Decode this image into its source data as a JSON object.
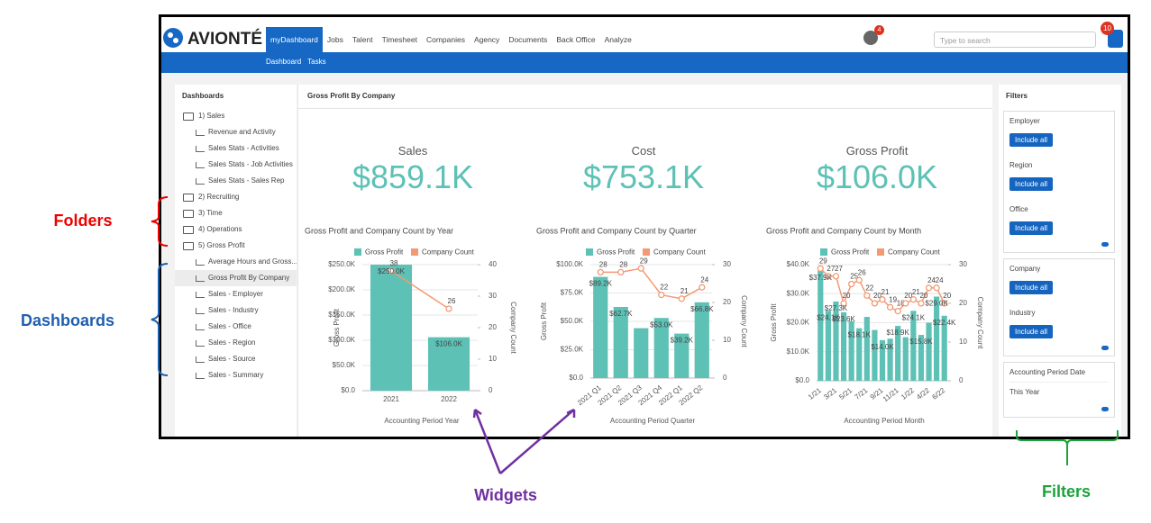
{
  "header": {
    "logo": "AVIONTÉ",
    "nav": [
      "myDashboard",
      "Jobs",
      "Talent",
      "Timesheet",
      "Companies",
      "Agency",
      "Documents",
      "Back Office",
      "Analyze"
    ],
    "subnav": [
      "Dashboard",
      "Tasks"
    ],
    "search_placeholder": "Type to search",
    "notification_count": "4",
    "alert_count": "10"
  },
  "sidebar": {
    "title": "Dashboards",
    "folders": [
      {
        "label": "1) Sales",
        "dashboards": [
          {
            "label": "Revenue and Activity"
          },
          {
            "label": "Sales Stats - Activities"
          },
          {
            "label": "Sales Stats - Job Activities"
          },
          {
            "label": "Sales Stats - Sales Rep"
          }
        ]
      },
      {
        "label": "2) Recruiting",
        "dashboards": []
      },
      {
        "label": "3) Time",
        "dashboards": []
      },
      {
        "label": "4) Operations",
        "dashboards": []
      },
      {
        "label": "5) Gross Profit",
        "dashboards": [
          {
            "label": "Average Hours and Gross..."
          },
          {
            "label": "Gross Profit By Company",
            "selected": true
          },
          {
            "label": "Sales - Employer"
          },
          {
            "label": "Sales - Industry"
          },
          {
            "label": "Sales - Office"
          },
          {
            "label": "Sales - Region"
          },
          {
            "label": "Sales - Source"
          },
          {
            "label": "Sales - Summary"
          }
        ]
      }
    ]
  },
  "widget": {
    "title": "Gross Profit By Company",
    "kpis": [
      {
        "label": "Sales",
        "value": "$859.1K"
      },
      {
        "label": "Cost",
        "value": "$753.1K"
      },
      {
        "label": "Gross Profit",
        "value": "$106.0K"
      }
    ]
  },
  "chart_data": [
    {
      "type": "combo",
      "title": "Gross Profit and Company Count by Year",
      "x_label": "Accounting Period Year",
      "y_label": "Gross Profit",
      "y2_label": "Company Count",
      "categories": [
        "2021",
        "2022"
      ],
      "series": [
        {
          "name": "Gross Profit",
          "color": "#5dc1b6",
          "values": [
            250000,
            106000
          ],
          "value_labels": [
            "$250.0K",
            "$106.0K"
          ]
        },
        {
          "name": "Company Count",
          "color": "#f39a74",
          "axis": "y2",
          "values": [
            38,
            26
          ]
        }
      ],
      "ylim": [
        0,
        250000
      ],
      "yticks": [
        {
          "value": 0,
          "label": "$0.0"
        },
        {
          "value": 50000,
          "label": "$50.0K"
        },
        {
          "value": 100000,
          "label": "$100.0K"
        },
        {
          "value": 150000,
          "label": "$150.0K"
        },
        {
          "value": 200000,
          "label": "$200.0K"
        },
        {
          "value": 250000,
          "label": "$250.0K"
        }
      ],
      "y2lim": [
        0,
        40
      ],
      "y2ticks": [
        0,
        10,
        20,
        30,
        40
      ]
    },
    {
      "type": "combo",
      "title": "Gross Profit and Company Count by Quarter",
      "x_label": "Accounting Period Quarter",
      "y_label": "Gross Profit",
      "y2_label": "Company Count",
      "categories": [
        "2021 Q1",
        "2021 Q2",
        "2021 Q3",
        "2021 Q4",
        "2022 Q1",
        "2022 Q2"
      ],
      "series": [
        {
          "name": "Gross Profit",
          "color": "#5dc1b6",
          "values": [
            89200,
            62700,
            44000,
            53000,
            39200,
            66800
          ],
          "value_labels": [
            "$89.2K",
            "$62.7K",
            null,
            "$53.0K",
            "$39.2K",
            "$66.8K"
          ]
        },
        {
          "name": "Company Count",
          "color": "#f39a74",
          "axis": "y2",
          "values": [
            28,
            28,
            29,
            22,
            21,
            24
          ]
        }
      ],
      "ylim": [
        0,
        100000
      ],
      "yticks": [
        {
          "value": 0,
          "label": "$0.0"
        },
        {
          "value": 25000,
          "label": "$25.0K"
        },
        {
          "value": 50000,
          "label": "$50.0K"
        },
        {
          "value": 75000,
          "label": "$75.0K"
        },
        {
          "value": 100000,
          "label": "$100.0K"
        }
      ],
      "y2lim": [
        0,
        30
      ],
      "y2ticks": [
        0,
        10,
        20,
        30
      ]
    },
    {
      "type": "combo",
      "title": "Gross Profit and Company Count by Month",
      "x_label": "Accounting Period Month",
      "y_label": "Gross Profit",
      "y2_label": "Company Count",
      "categories": [
        "1/21",
        null,
        "3/21",
        null,
        "5/21",
        null,
        "7/21",
        null,
        "9/21",
        null,
        "11/21",
        null,
        "1/22",
        null,
        "4/22",
        null,
        "6/22"
      ],
      "series": [
        {
          "name": "Gross Profit",
          "color": "#5dc1b6",
          "values": [
            37900,
            24100,
            27300,
            23600,
            20500,
            18100,
            22000,
            17500,
            14000,
            14500,
            18900,
            15000,
            24100,
            15800,
            20000,
            29000,
            22400
          ],
          "value_labels": [
            "$37.9K",
            "$24.1K",
            "$27.3K",
            "$23.6K",
            null,
            "$18.1K",
            null,
            null,
            "$14.0K",
            null,
            "$18.9K",
            null,
            "$24.1K",
            "$15.8K",
            null,
            "$29.0K",
            "$22.4K"
          ]
        },
        {
          "name": "Company Count",
          "color": "#f39a74",
          "axis": "y2",
          "values": [
            29,
            27,
            27,
            20,
            25,
            26,
            22,
            20,
            21,
            19,
            18,
            20,
            21,
            20,
            24,
            24,
            20
          ]
        }
      ],
      "ylim": [
        0,
        40000
      ],
      "yticks": [
        {
          "value": 0,
          "label": "$0.0"
        },
        {
          "value": 10000,
          "label": "$10.0K"
        },
        {
          "value": 20000,
          "label": "$20.0K"
        },
        {
          "value": 30000,
          "label": "$30.0K"
        },
        {
          "value": 40000,
          "label": "$40.0K"
        }
      ],
      "y2lim": [
        0,
        30
      ],
      "y2ticks": [
        0,
        10,
        20,
        30
      ]
    }
  ],
  "filters": {
    "title": "Filters",
    "panels": [
      [
        {
          "label": "Employer",
          "button": "Include all"
        },
        {
          "label": "Region",
          "button": "Include all"
        },
        {
          "label": "Office",
          "button": "Include all"
        }
      ],
      [
        {
          "label": "Company",
          "button": "Include all"
        },
        {
          "label": "Industry",
          "button": "Include all"
        }
      ],
      [
        {
          "label": "Accounting Period Date",
          "value": "This Year"
        }
      ]
    ]
  },
  "annotations": {
    "folders": "Folders",
    "dashboards": "Dashboards",
    "widgets": "Widgets",
    "filters": "Filters"
  }
}
